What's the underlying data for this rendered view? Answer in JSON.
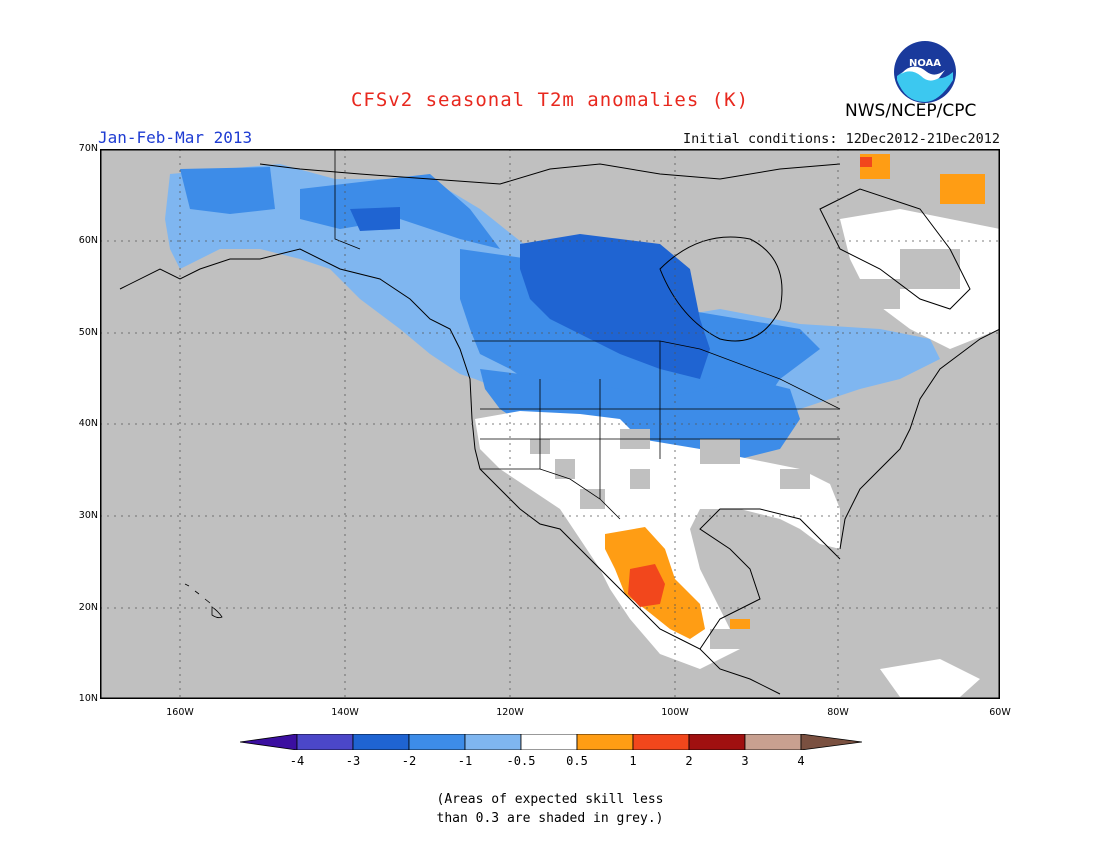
{
  "title": "CFSv2 seasonal T2m anomalies (K)",
  "period": "Jan-Feb-Mar 2013",
  "initial_conditions": "Initial conditions: 12Dec2012-21Dec2012",
  "agency": "NWS/NCEP/CPC",
  "logo_text": "NOAA",
  "lat_labels": [
    "70N",
    "60N",
    "50N",
    "40N",
    "30N",
    "20N",
    "10N"
  ],
  "lon_labels": [
    "160W",
    "140W",
    "120W",
    "100W",
    "80W",
    "60W"
  ],
  "colorbar": {
    "labels": [
      "-4",
      "-3",
      "-2",
      "-1",
      "-0.5",
      "0.5",
      "1",
      "2",
      "3",
      "4"
    ],
    "colors": [
      "#3b0fa0",
      "#4b47c8",
      "#1f64d2",
      "#3d8ce8",
      "#7fb6f0",
      "#ffffff",
      "#ff9d14",
      "#f2471c",
      "#a01010",
      "#c8a090",
      "#7a5040"
    ]
  },
  "legend": {
    "skill_grey": "#c0c0c0",
    "note_line1": "(Areas of expected skill less",
    "note_line2": "than 0.3 are shaded in grey.)"
  }
}
